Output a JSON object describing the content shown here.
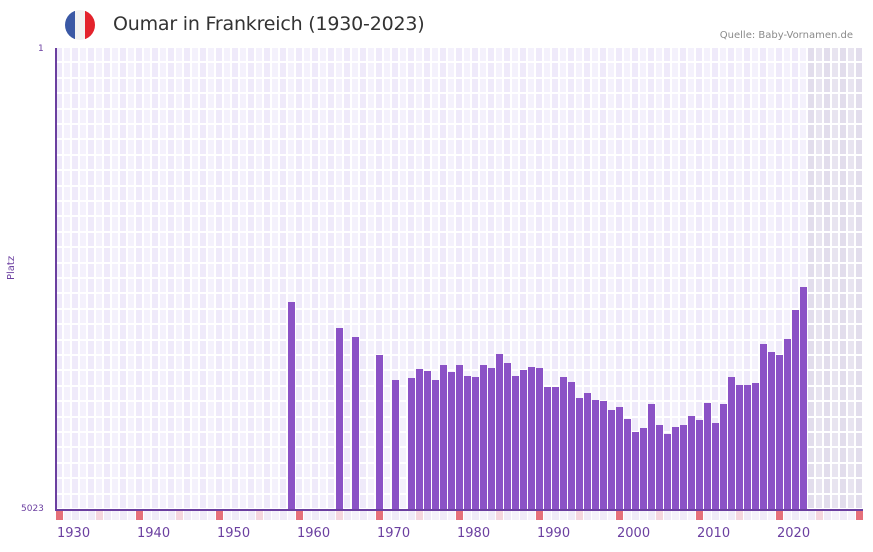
{
  "header": {
    "title": "Oumar in Frankreich (1930-2023)",
    "source": "Quelle: Baby-Vornamen.de",
    "flag": {
      "icon": "france-flag-icon",
      "colors": [
        "#3a58a5",
        "#f2f2f2",
        "#e3232c"
      ]
    }
  },
  "colors": {
    "bar": "#8b52c6",
    "axis": "#6b3fa0",
    "cell_a": "#efeafa",
    "cell_b": "#f4f1fc",
    "future_a": "#e2ddec",
    "future_b": "#e8e4f0",
    "marker_strong": "#e5707a",
    "marker_light": "#f5d6de",
    "marker_none": "#f0ebf8"
  },
  "chart_data": {
    "type": "bar",
    "title": "Oumar in Frankreich (1930-2023)",
    "xlabel": "",
    "ylabel": "Platz",
    "y_axis_inverted": true,
    "ylim": [
      5023,
      1
    ],
    "y_tick_labels": [
      "1",
      "5023"
    ],
    "x_range": [
      1930,
      2030
    ],
    "x_tick_labels": [
      "1930",
      "1940",
      "1950",
      "1960",
      "1970",
      "1980",
      "1990",
      "2000",
      "2010",
      "2020"
    ],
    "grid": true,
    "shaded_future_from": 2024,
    "categories": [
      1959,
      1965,
      1967,
      1970,
      1972,
      1974,
      1975,
      1976,
      1977,
      1978,
      1979,
      1980,
      1981,
      1982,
      1983,
      1984,
      1985,
      1986,
      1987,
      1988,
      1989,
      1990,
      1991,
      1992,
      1993,
      1994,
      1995,
      1996,
      1997,
      1998,
      1999,
      2000,
      2001,
      2002,
      2003,
      2004,
      2005,
      2006,
      2007,
      2008,
      2009,
      2010,
      2011,
      2012,
      2013,
      2014,
      2015,
      2016,
      2017,
      2018,
      2019,
      2020,
      2021,
      2022,
      2023
    ],
    "values": [
      2762,
      3045,
      3143,
      3338,
      3610,
      3589,
      3491,
      3513,
      3610,
      3448,
      3524,
      3448,
      3567,
      3578,
      3448,
      3480,
      3328,
      3426,
      3567,
      3502,
      3469,
      3480,
      3687,
      3687,
      3578,
      3632,
      3806,
      3752,
      3828,
      3839,
      3937,
      3904,
      4035,
      4176,
      4133,
      3872,
      4100,
      4198,
      4122,
      4100,
      4002,
      4046,
      3861,
      4078,
      3872,
      3578,
      3665,
      3665,
      3643,
      3219,
      3306,
      3338,
      3165,
      2849,
      2599
    ]
  }
}
